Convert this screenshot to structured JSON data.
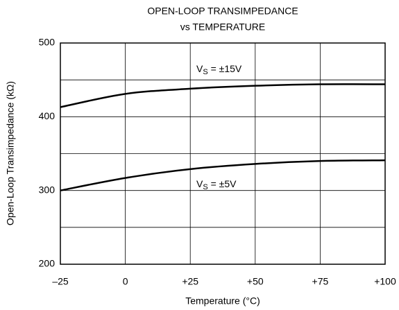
{
  "chart_data": {
    "type": "line",
    "title": [
      "OPEN-LOOP TRANSIMPEDANCE",
      "vs TEMPERATURE"
    ],
    "xlabel": "Temperature (°C)",
    "ylabel": "Open-Loop Transimpedance (kΩ)",
    "x": [
      -25,
      0,
      25,
      50,
      75,
      100
    ],
    "series": [
      {
        "name": {
          "main": "V",
          "sub": "S",
          "rest": " = ±15V"
        },
        "color": "#000000",
        "values": [
          413,
          431,
          438,
          442,
          444,
          444
        ]
      },
      {
        "name": {
          "main": "V",
          "sub": "S",
          "rest": " = ±5V"
        },
        "color": "#000000",
        "values": [
          300,
          317,
          329,
          336,
          340,
          341
        ]
      }
    ],
    "xlim": [
      -25,
      100
    ],
    "xticks": [
      {
        "value": -25,
        "label": "–25"
      },
      0,
      {
        "value": 25,
        "label": "+25"
      },
      {
        "value": 50,
        "label": "+50"
      },
      {
        "value": 75,
        "label": "+75"
      },
      {
        "value": 100,
        "label": "+100"
      }
    ],
    "ylim": [
      200,
      500
    ],
    "yticks": [
      200,
      300,
      400,
      500
    ],
    "yminor_ticks": [
      250,
      350,
      450
    ],
    "grid": true
  }
}
